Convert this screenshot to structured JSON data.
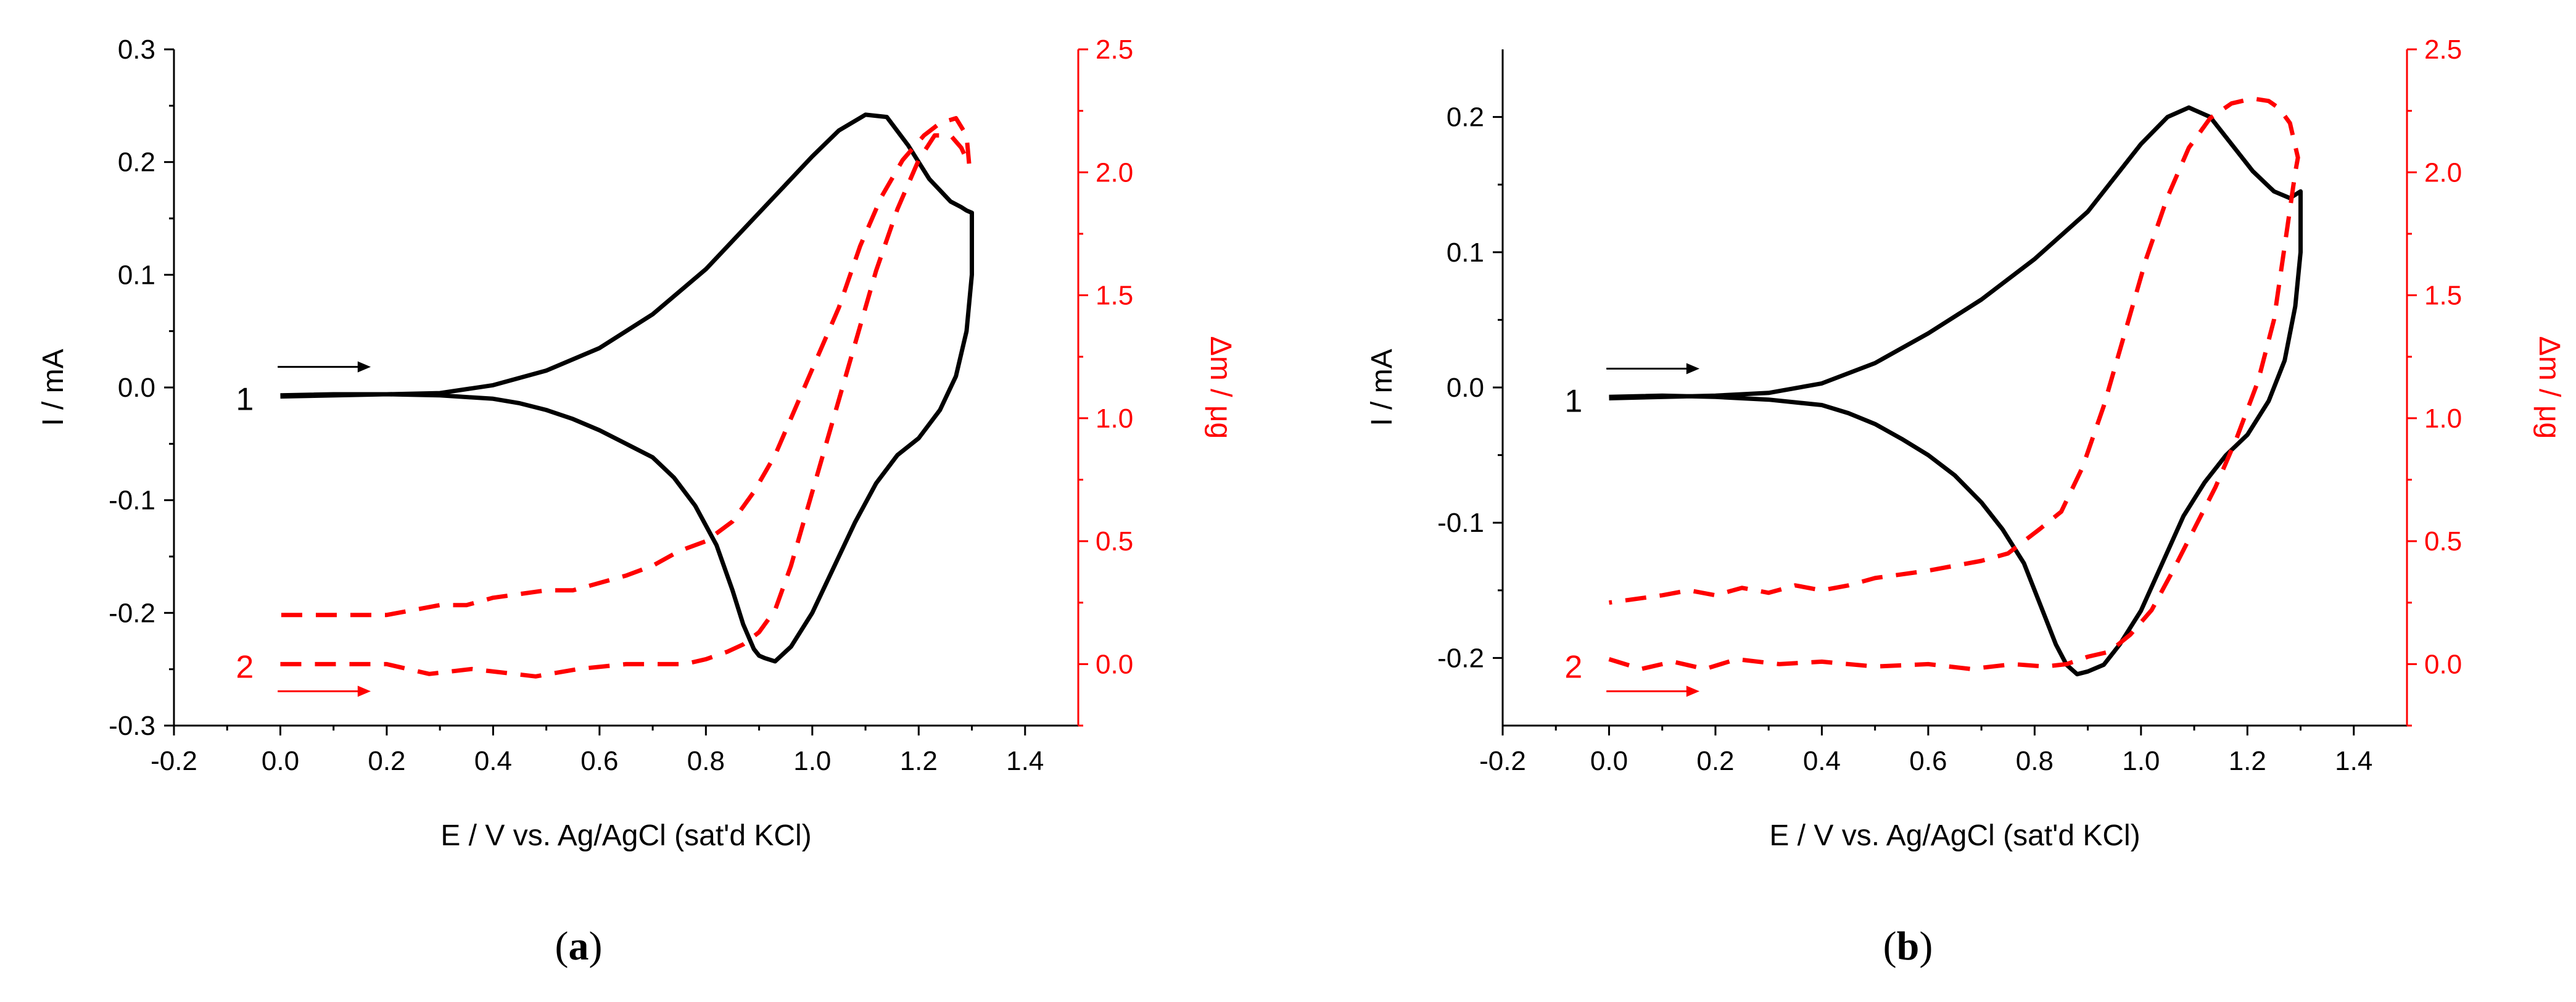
{
  "colors": {
    "current": "#000000",
    "mass": "#ff0000",
    "axis": "#000000"
  },
  "chart_data": [
    {
      "panel": "a",
      "type": "line",
      "caption": "(a)",
      "caption_letter": "a",
      "xlabel": "E / V vs. Ag/AgCl (sat'd KCl)",
      "ylabel": "I / mA",
      "y2label": "Δm / μg",
      "xlim": [
        -0.2,
        1.5
      ],
      "ylim": [
        -0.3,
        0.3
      ],
      "y2lim": [
        -0.25,
        2.5
      ],
      "x_ticks": [
        "-0.2",
        "0.0",
        "0.2",
        "0.4",
        "0.6",
        "0.8",
        "1.0",
        "1.2",
        "1.4"
      ],
      "y_ticks": [
        "-0.3",
        "-0.2",
        "-0.1",
        "0.0",
        "0.1",
        "0.2",
        "0.3"
      ],
      "y2_ticks": [
        "0.0",
        "0.5",
        "1.0",
        "1.5",
        "2.0",
        "2.5"
      ],
      "annotations": {
        "label1": "1",
        "label2": "2"
      },
      "series": [
        {
          "name": "1",
          "axis": "left",
          "style": "solid",
          "x": [
            0.0,
            0.2,
            0.3,
            0.4,
            0.5,
            0.6,
            0.7,
            0.8,
            0.9,
            1.0,
            1.05,
            1.1,
            1.14,
            1.18,
            1.22,
            1.26,
            1.28,
            1.29,
            1.3,
            1.3,
            1.29,
            1.27,
            1.24,
            1.2,
            1.16,
            1.12,
            1.08,
            1.04,
            1.0,
            0.96,
            0.93,
            0.91,
            0.9,
            0.89,
            0.87,
            0.85,
            0.82,
            0.78,
            0.74,
            0.7,
            0.65,
            0.6,
            0.55,
            0.5,
            0.45,
            0.4,
            0.3,
            0.2,
            0.1,
            0.0
          ],
          "y": [
            -0.008,
            -0.006,
            -0.005,
            0.002,
            0.015,
            0.035,
            0.065,
            0.105,
            0.155,
            0.205,
            0.228,
            0.242,
            0.24,
            0.215,
            0.185,
            0.165,
            0.16,
            0.157,
            0.155,
            0.1,
            0.05,
            0.01,
            -0.02,
            -0.045,
            -0.06,
            -0.085,
            -0.12,
            -0.16,
            -0.2,
            -0.23,
            -0.243,
            -0.24,
            -0.238,
            -0.232,
            -0.21,
            -0.18,
            -0.14,
            -0.105,
            -0.08,
            -0.062,
            -0.05,
            -0.038,
            -0.028,
            -0.02,
            -0.014,
            -0.01,
            -0.007,
            -0.006,
            -0.006,
            -0.007
          ]
        },
        {
          "name": "2",
          "axis": "right",
          "style": "dashed",
          "x": [
            0.0,
            0.2,
            0.28,
            0.36,
            0.48,
            0.56,
            0.65,
            0.7,
            0.76,
            0.8,
            0.84,
            0.87,
            0.9,
            0.93,
            0.96,
            1.0,
            1.04,
            1.08,
            1.12,
            1.16,
            1.2,
            1.23,
            1.26,
            1.28,
            1.295,
            1.29,
            1.27,
            1.24,
            1.21,
            1.17,
            1.13,
            1.09,
            1.05,
            1.01,
            0.97,
            0.93,
            0.89,
            0.85,
            0.8,
            0.75,
            0.7,
            0.65,
            0.55,
            0.5,
            0.4,
            0.35,
            0.3,
            0.2,
            0.0
          ],
          "y": [
            0.0,
            0.0,
            -0.04,
            -0.02,
            -0.05,
            -0.02,
            0.0,
            0.0,
            0.0,
            0.02,
            0.05,
            0.08,
            0.13,
            0.22,
            0.4,
            0.7,
            1.0,
            1.3,
            1.6,
            1.85,
            2.05,
            2.15,
            2.15,
            2.1,
            2.03,
            2.15,
            2.22,
            2.2,
            2.15,
            2.05,
            1.9,
            1.7,
            1.45,
            1.25,
            1.05,
            0.85,
            0.7,
            0.58,
            0.5,
            0.46,
            0.4,
            0.36,
            0.3,
            0.3,
            0.27,
            0.24,
            0.24,
            0.2,
            0.2
          ]
        }
      ]
    },
    {
      "panel": "b",
      "type": "line",
      "caption": "(b)",
      "caption_letter": "b",
      "xlabel": "E / V vs. Ag/AgCl (sat'd KCl)",
      "ylabel": "I / mA",
      "y2label": "Δm / μg",
      "xlim": [
        -0.2,
        1.5
      ],
      "ylim": [
        -0.25,
        0.25
      ],
      "y2lim": [
        -0.25,
        2.5
      ],
      "x_ticks": [
        "-0.2",
        "0.0",
        "0.2",
        "0.4",
        "0.6",
        "0.8",
        "1.0",
        "1.2",
        "1.4"
      ],
      "y_ticks": [
        "-0.2",
        "-0.1",
        "0.0",
        "0.1",
        "0.2"
      ],
      "y2_ticks": [
        "0.0",
        "0.5",
        "1.0",
        "1.5",
        "2.0",
        "2.5"
      ],
      "annotations": {
        "label1": "1",
        "label2": "2"
      },
      "series": [
        {
          "name": "1",
          "axis": "left",
          "style": "solid",
          "x": [
            0.0,
            0.2,
            0.3,
            0.4,
            0.5,
            0.6,
            0.7,
            0.8,
            0.9,
            1.0,
            1.05,
            1.09,
            1.13,
            1.17,
            1.21,
            1.25,
            1.28,
            1.3,
            1.3,
            1.29,
            1.27,
            1.24,
            1.2,
            1.16,
            1.12,
            1.08,
            1.04,
            1.0,
            0.96,
            0.93,
            0.9,
            0.88,
            0.86,
            0.84,
            0.82,
            0.78,
            0.74,
            0.7,
            0.65,
            0.6,
            0.55,
            0.5,
            0.45,
            0.4,
            0.3,
            0.2,
            0.1,
            0.0
          ],
          "y": [
            -0.008,
            -0.006,
            -0.004,
            0.003,
            0.018,
            0.04,
            0.065,
            0.095,
            0.13,
            0.18,
            0.2,
            0.207,
            0.2,
            0.18,
            0.16,
            0.145,
            0.14,
            0.145,
            0.1,
            0.06,
            0.02,
            -0.01,
            -0.035,
            -0.05,
            -0.07,
            -0.095,
            -0.13,
            -0.165,
            -0.19,
            -0.205,
            -0.21,
            -0.212,
            -0.205,
            -0.19,
            -0.17,
            -0.13,
            -0.105,
            -0.085,
            -0.065,
            -0.05,
            -0.038,
            -0.027,
            -0.019,
            -0.013,
            -0.009,
            -0.007,
            -0.006,
            -0.007
          ]
        },
        {
          "name": "2",
          "axis": "right",
          "style": "dashed",
          "x": [
            0.0,
            0.06,
            0.12,
            0.18,
            0.24,
            0.32,
            0.4,
            0.5,
            0.6,
            0.68,
            0.76,
            0.82,
            0.86,
            0.9,
            0.94,
            0.98,
            1.02,
            1.06,
            1.1,
            1.14,
            1.18,
            1.22,
            1.25,
            1.27,
            1.29,
            1.295,
            1.28,
            1.26,
            1.24,
            1.21,
            1.17,
            1.13,
            1.09,
            1.05,
            1.01,
            0.97,
            0.93,
            0.89,
            0.85,
            0.81,
            0.78,
            0.75,
            0.7,
            0.65,
            0.6,
            0.5,
            0.45,
            0.4,
            0.35,
            0.3,
            0.25,
            0.2,
            0.15,
            0.1,
            0.0
          ],
          "y": [
            0.02,
            -0.02,
            0.01,
            -0.02,
            0.02,
            0.0,
            0.01,
            -0.01,
            0.0,
            -0.02,
            0.0,
            -0.01,
            0.0,
            0.03,
            0.05,
            0.12,
            0.22,
            0.38,
            0.55,
            0.72,
            0.92,
            1.15,
            1.4,
            1.7,
            2.0,
            2.06,
            2.2,
            2.26,
            2.29,
            2.3,
            2.28,
            2.22,
            2.1,
            1.9,
            1.65,
            1.35,
            1.05,
            0.8,
            0.62,
            0.55,
            0.5,
            0.45,
            0.42,
            0.4,
            0.38,
            0.35,
            0.32,
            0.3,
            0.32,
            0.29,
            0.31,
            0.28,
            0.3,
            0.28,
            0.25
          ]
        }
      ]
    }
  ]
}
